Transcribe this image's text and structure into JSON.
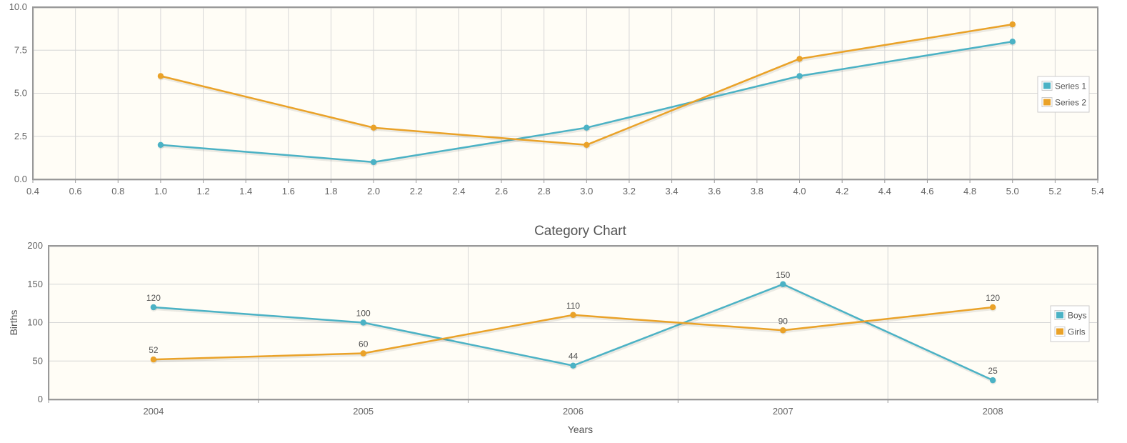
{
  "chart_data": [
    {
      "type": "line",
      "title": "",
      "xlabel": "",
      "ylabel": "",
      "xlim": [
        0.4,
        5.4
      ],
      "ylim": [
        0,
        10
      ],
      "x_ticks": [
        "0.4",
        "0.6",
        "0.8",
        "1.0",
        "1.2",
        "1.4",
        "1.6",
        "1.8",
        "2.0",
        "2.2",
        "2.4",
        "2.6",
        "2.8",
        "3.0",
        "3.2",
        "3.4",
        "3.6",
        "3.8",
        "4.0",
        "4.2",
        "4.4",
        "4.6",
        "4.8",
        "5.0",
        "5.2",
        "5.4"
      ],
      "y_ticks": [
        "0.0",
        "2.5",
        "5.0",
        "7.5",
        "10.0"
      ],
      "grid": true,
      "legend_position": "right",
      "series": [
        {
          "name": "Series 1",
          "color": "#4bb2c5",
          "points": [
            [
              1,
              2
            ],
            [
              2,
              1
            ],
            [
              3,
              3
            ],
            [
              4,
              6
            ],
            [
              5,
              8
            ]
          ]
        },
        {
          "name": "Series 2",
          "color": "#eaa228",
          "points": [
            [
              1,
              6
            ],
            [
              2,
              3
            ],
            [
              3,
              2
            ],
            [
              4,
              7
            ],
            [
              5,
              9
            ]
          ]
        }
      ]
    },
    {
      "type": "line",
      "title": "Category Chart",
      "xlabel": "Years",
      "ylabel": "Births",
      "categories": [
        "2004",
        "2005",
        "2006",
        "2007",
        "2008"
      ],
      "ylim": [
        0,
        200
      ],
      "y_ticks": [
        "0",
        "50",
        "100",
        "150",
        "200"
      ],
      "grid": true,
      "legend_position": "right",
      "show_point_labels": true,
      "series": [
        {
          "name": "Boys",
          "color": "#4bb2c5",
          "values": [
            120,
            100,
            44,
            150,
            25
          ]
        },
        {
          "name": "Girls",
          "color": "#eaa228",
          "values": [
            52,
            60,
            110,
            90,
            120
          ]
        }
      ]
    }
  ]
}
